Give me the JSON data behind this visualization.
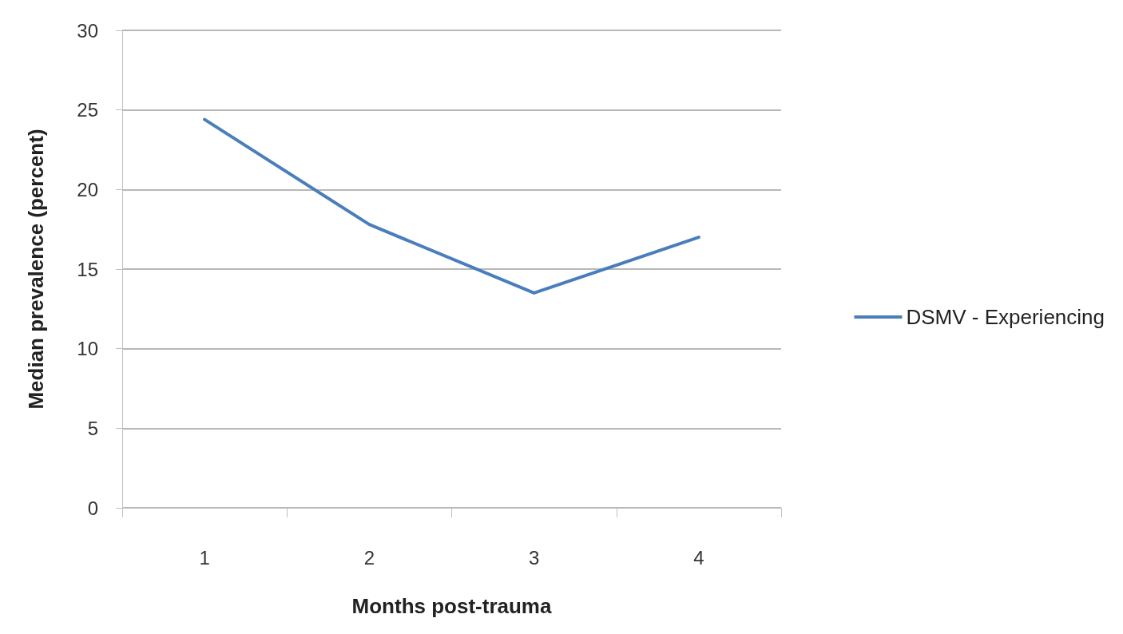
{
  "chart_data": {
    "type": "line",
    "xlabel": "Months post-trauma",
    "ylabel": "Median prevalence (percent)",
    "categories": [
      "1",
      "2",
      "3",
      "4"
    ],
    "series": [
      {
        "name": "DSMV - Experiencing",
        "color": "#4a7ebb",
        "values": [
          24.4,
          17.8,
          13.5,
          17.0
        ]
      }
    ],
    "ylim": [
      0,
      30
    ],
    "yticks": [
      0,
      5,
      10,
      15,
      20,
      25,
      30
    ],
    "grid": "y",
    "legend": "right",
    "marker": "none"
  }
}
